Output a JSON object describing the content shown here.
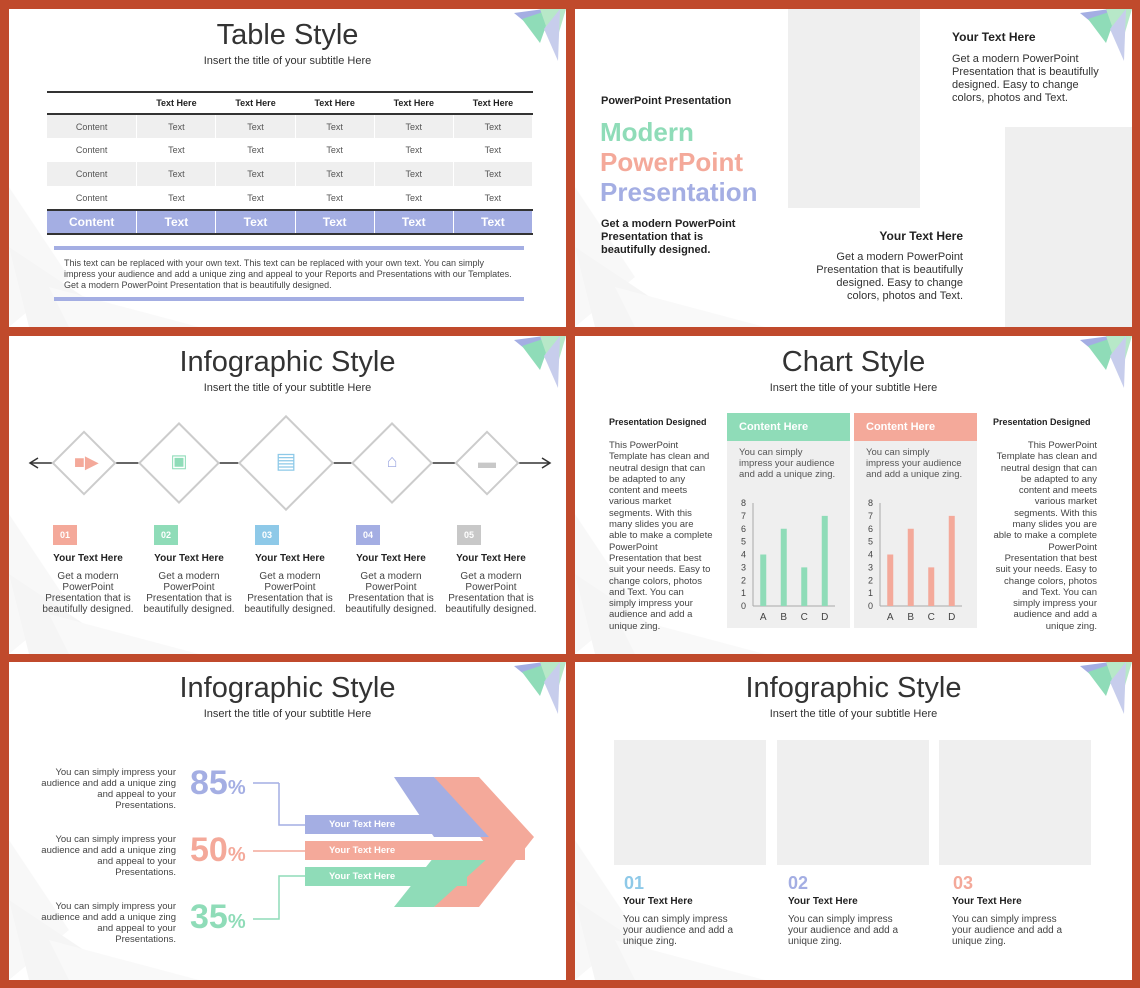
{
  "colors": {
    "frame": "#c04a2c",
    "mint": "#8fdcb8",
    "salmon": "#f4a99a",
    "periwinkle": "#a4aee3",
    "gray": "#efefef"
  },
  "slide1": {
    "title": "Table Style",
    "subtitle": "Insert the title of your subtitle Here",
    "headers": [
      "",
      "Text Here",
      "Text Here",
      "Text Here",
      "Text Here",
      "Text Here"
    ],
    "rows": [
      [
        "Content",
        "Text",
        "Text",
        "Text",
        "Text",
        "Text"
      ],
      [
        "Content",
        "Text",
        "Text",
        "Text",
        "Text",
        "Text"
      ],
      [
        "Content",
        "Text",
        "Text",
        "Text",
        "Text",
        "Text"
      ],
      [
        "Content",
        "Text",
        "Text",
        "Text",
        "Text",
        "Text"
      ]
    ],
    "last_row": [
      "Content",
      "Text",
      "Text",
      "Text",
      "Text",
      "Text"
    ],
    "note": "This text can be replaced with your own text. This text can be replaced with your own text. You can simply impress your audience and add a unique zing and appeal to your Reports and Presentations with our Templates. Get a modern PowerPoint Presentation that is beautifully designed."
  },
  "slide2": {
    "kicker": "PowerPoint Presentation",
    "big1": "Modern",
    "big2": "PowerPoint",
    "big3": "Presentation",
    "body": "Get a modern PowerPoint Presentation that is beautifully designed.",
    "top_heading": "Your Text Here",
    "top_body": "Get a modern PowerPoint Presentation that is beautifully designed. Easy to change colors, photos and Text.",
    "bottom_heading": "Your Text Here",
    "bottom_body": "Get a modern PowerPoint Presentation that is beautifully designed. Easy to change colors, photos and Text."
  },
  "slide3": {
    "title": "Infographic Style",
    "subtitle": "Insert the title of your subtitle Here",
    "steps": [
      {
        "num": "01",
        "heading": "Your Text Here",
        "body": "Get a modern PowerPoint Presentation that is beautifully designed.",
        "icon": "video-camera-icon",
        "color": "#f4a99a"
      },
      {
        "num": "02",
        "heading": "Your Text Here",
        "body": "Get a modern PowerPoint Presentation that is beautifully designed.",
        "icon": "camera-icon",
        "color": "#8fdcb8"
      },
      {
        "num": "03",
        "heading": "Your Text Here",
        "body": "Get a modern PowerPoint Presentation that is beautifully designed.",
        "icon": "book-icon",
        "color": "#8ec9e8"
      },
      {
        "num": "04",
        "heading": "Your Text Here",
        "body": "Get a modern PowerPoint Presentation that is beautifully designed.",
        "icon": "home-icon",
        "color": "#a4aee3"
      },
      {
        "num": "05",
        "heading": "Your Text Here",
        "body": "Get a modern PowerPoint Presentation that is beautifully designed.",
        "icon": "briefcase-icon",
        "color": "#c8c8c8"
      }
    ]
  },
  "slide4": {
    "title": "Chart Style",
    "subtitle": "Insert the title of your subtitle Here",
    "left_heading": "Presentation Designed",
    "left_body": "This PowerPoint Template has clean and neutral design that can be adapted to any content and meets various market segments. With this many slides you are able to make a complete PowerPoint Presentation that best suit your needs. Easy to change colors, photos and Text. You can simply impress your audience and add a unique zing.",
    "right_heading": "Presentation Designed",
    "right_body": "This PowerPoint Template has clean and neutral design that can be adapted to any content and meets various market segments. With this many slides you are able to make a complete PowerPoint Presentation that best suit your needs. Easy to change colors, photos and Text. You can simply impress your audience and add a unique zing.",
    "panels": [
      {
        "heading": "Content Here",
        "text": "You can simply impress your audience and add a unique zing.",
        "color": "#8fdcb8"
      },
      {
        "heading": "Content Here",
        "text": "You can simply impress your audience and add a unique zing.",
        "color": "#f4a99a"
      }
    ]
  },
  "chart_data": [
    {
      "type": "bar",
      "categories": [
        "A",
        "B",
        "C",
        "D"
      ],
      "values": [
        4,
        6,
        3,
        7
      ],
      "ylim": [
        0,
        8
      ],
      "yticks": [
        "0",
        "1",
        "2",
        "3",
        "4",
        "5",
        "6",
        "7",
        "8"
      ],
      "color": "#8fdcb8"
    },
    {
      "type": "bar",
      "categories": [
        "A",
        "B",
        "C",
        "D"
      ],
      "values": [
        4,
        6,
        3,
        7
      ],
      "ylim": [
        0,
        8
      ],
      "yticks": [
        "0",
        "1",
        "2",
        "3",
        "4",
        "5",
        "6",
        "7",
        "8"
      ],
      "color": "#f4a99a"
    }
  ],
  "slide5": {
    "title": "Infographic Style",
    "subtitle": "Insert the title of your subtitle Here",
    "items": [
      {
        "text": "You can simply impress your audience and add a unique zing and appeal to your Presentations.",
        "pct": "85",
        "unit": "%",
        "bar": "Your Text Here",
        "color": "#a4aee3"
      },
      {
        "text": "You can simply impress your audience and add a unique zing and appeal to your Presentations.",
        "pct": "50",
        "unit": "%",
        "bar": "Your Text Here",
        "color": "#f4a99a"
      },
      {
        "text": "You can simply impress your audience and add a unique zing and appeal to your Presentations.",
        "pct": "35",
        "unit": "%",
        "bar": "Your Text Here",
        "color": "#8fdcb8"
      }
    ]
  },
  "slide6": {
    "title": "Infographic Style",
    "subtitle": "Insert the title of your subtitle Here",
    "cards": [
      {
        "num": "01",
        "heading": "Your Text Here",
        "body": "You can simply impress your audience and add a unique zing.",
        "color": "#8ec9e8"
      },
      {
        "num": "02",
        "heading": "Your Text Here",
        "body": "You can simply impress your audience and add a unique zing.",
        "color": "#a4aee3"
      },
      {
        "num": "03",
        "heading": "Your Text Here",
        "body": "You can simply impress your audience and add a unique zing.",
        "color": "#f4a99a"
      }
    ]
  }
}
